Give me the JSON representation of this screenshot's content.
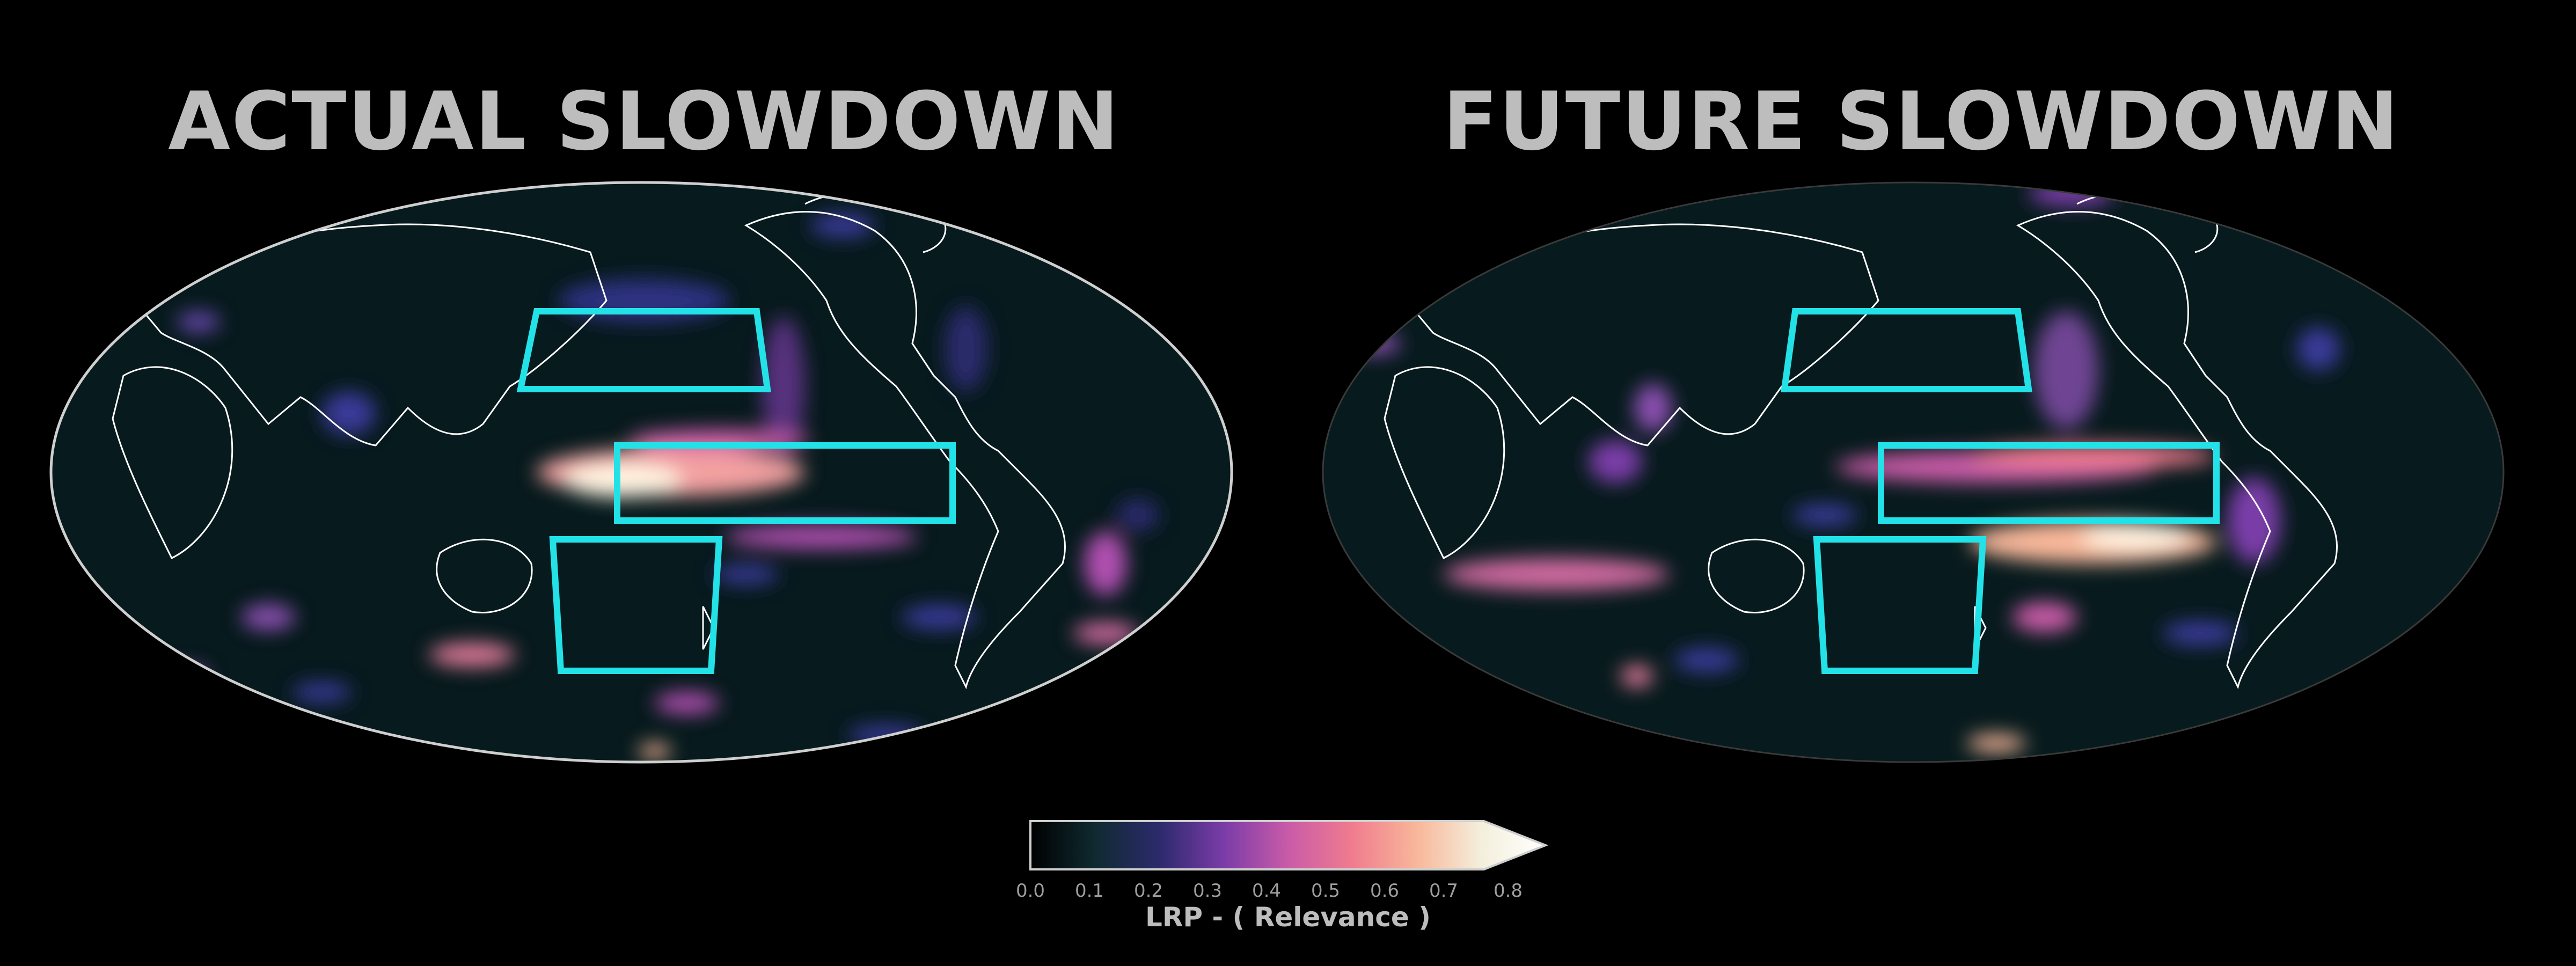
{
  "panels": [
    {
      "title": "ACTUAL SLOWDOWN"
    },
    {
      "title": "FUTURE SLOWDOWN"
    }
  ],
  "colorbar": {
    "label": "LRP - ( Relevance )",
    "ticks": [
      "0.0",
      "0.1",
      "0.2",
      "0.3",
      "0.4",
      "0.5",
      "0.6",
      "0.7",
      "0.8"
    ],
    "min": 0.0,
    "max": 0.8,
    "extend": "max",
    "colors": [
      "#000000",
      "#0f2a30",
      "#2c2a6c",
      "#7a3ca8",
      "#c95ba8",
      "#f07c8e",
      "#f8b79a",
      "#f4efdc",
      "#ffffff"
    ]
  },
  "colors": {
    "background": "#000000",
    "box_outline": "#22e2e8",
    "coastline": "#ffffff"
  },
  "boxes_per_panel": 3
}
